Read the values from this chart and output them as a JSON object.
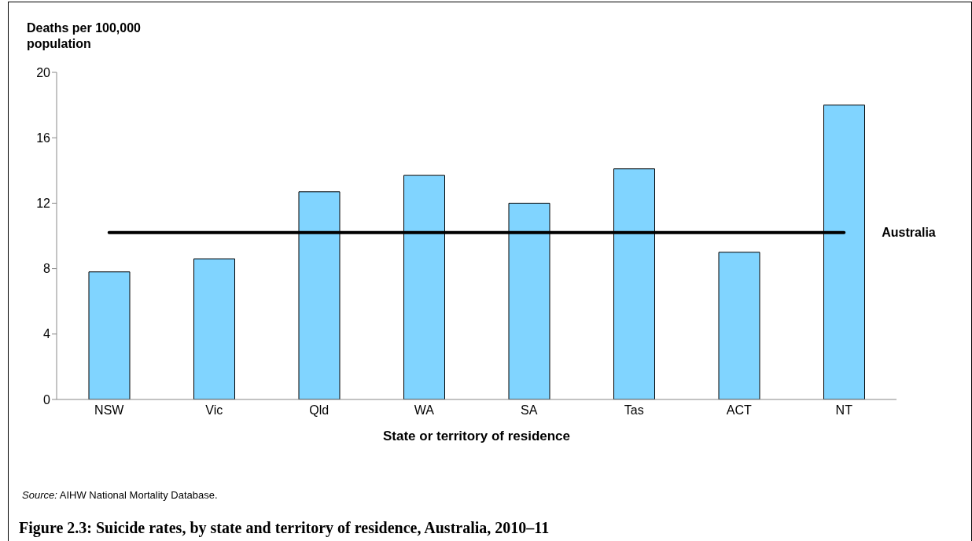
{
  "chart_data": {
    "type": "bar",
    "title": "Figure 2.3: Suicide rates, by state and territory of residence, Australia, 2010–11",
    "xlabel": "State or territory of residence",
    "ylabel": "Deaths per 100,000 population",
    "categories": [
      "NSW",
      "Vic",
      "Qld",
      "WA",
      "SA",
      "Tas",
      "ACT",
      "NT"
    ],
    "values": [
      7.8,
      8.6,
      12.7,
      13.7,
      12.0,
      14.1,
      9.0,
      18.0
    ],
    "color": "#80d4ff",
    "ylim": [
      0,
      20
    ],
    "yticks": [
      0,
      4,
      8,
      12,
      16,
      20
    ],
    "grid": false,
    "ref_lines": [
      {
        "axis": "y",
        "value": 10.2,
        "label": "Australia",
        "color": "#000000"
      }
    ],
    "annotations": [
      "Source: AIHW National Mortality Database."
    ]
  }
}
